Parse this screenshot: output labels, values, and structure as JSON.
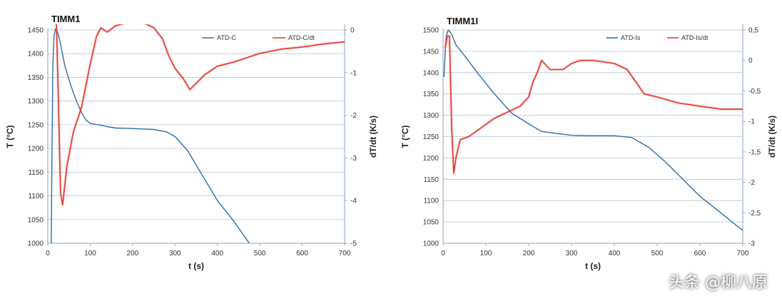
{
  "colors": {
    "temperature": "#2d6ea3",
    "derivative": "#e03a32",
    "grid": "#b8c4d6",
    "axis": "#8aa0bf"
  },
  "watermark": "头条 @柳八原",
  "chart_data": [
    {
      "type": "line",
      "title": "TIMM1",
      "xlabel": "t (s)",
      "ylabel": "T (°C)",
      "y2label": "dT/dt (K/s)",
      "xlim": [
        0,
        700
      ],
      "ylim": [
        1000,
        1450
      ],
      "y2lim": [
        -5,
        0
      ],
      "x_ticks": [
        "0",
        "100",
        "200",
        "300",
        "400",
        "500",
        "600",
        "700"
      ],
      "y_ticks": [
        "1000",
        "1050",
        "1100",
        "1150",
        "1200",
        "1250",
        "1300",
        "1350",
        "1400",
        "1450"
      ],
      "y2_ticks": [
        "-5",
        "-4",
        "-3",
        "-2",
        "-1",
        "0"
      ],
      "legend_position": "top-right",
      "grid": true,
      "series": [
        {
          "name": "ATD-C",
          "axis": "left",
          "color": "#2d6ea3",
          "x": [
            8,
            10,
            12,
            15,
            18,
            21,
            25,
            30,
            40,
            50,
            60,
            70,
            80,
            90,
            100,
            110,
            120,
            140,
            160,
            200,
            250,
            280,
            300,
            330,
            360,
            400,
            440,
            475
          ],
          "y": [
            1000,
            1200,
            1380,
            1440,
            1452,
            1450,
            1440,
            1420,
            1375,
            1345,
            1318,
            1295,
            1275,
            1260,
            1253,
            1251,
            1250,
            1246,
            1243,
            1242,
            1240,
            1235,
            1225,
            1195,
            1150,
            1090,
            1045,
            1000
          ]
        },
        {
          "name": "ATD-C/dt",
          "axis": "right",
          "color": "#e03a32",
          "x": [
            10,
            15,
            20,
            25,
            30,
            35,
            45,
            60,
            80,
            100,
            115,
            125,
            140,
            160,
            180,
            200,
            230,
            250,
            270,
            285,
            300,
            320,
            335,
            350,
            370,
            400,
            440,
            500,
            550,
            600,
            650,
            700
          ],
          "y": [
            0.15,
            0.45,
            0.3,
            -1.7,
            -3.8,
            -4.1,
            -3.2,
            -2.4,
            -1.8,
            -0.8,
            -0.15,
            0.05,
            -0.05,
            0.1,
            0.15,
            0.2,
            0.15,
            0.05,
            -0.2,
            -0.6,
            -0.9,
            -1.15,
            -1.4,
            -1.25,
            -1.05,
            -0.85,
            -0.75,
            -0.55,
            -0.45,
            -0.4,
            -0.33,
            -0.28
          ]
        }
      ]
    },
    {
      "type": "line",
      "title": "TIMM1I",
      "xlabel": "t (s)",
      "ylabel": "T (°C)",
      "y2label": "dT/dt (K/s)",
      "xlim": [
        0,
        700
      ],
      "ylim": [
        1000,
        1500
      ],
      "y2lim": [
        -3,
        0.5
      ],
      "x_ticks": [
        "0",
        "100",
        "200",
        "300",
        "400",
        "500",
        "600",
        "700"
      ],
      "y_ticks": [
        "1000",
        "1050",
        "1100",
        "1150",
        "1200",
        "1250",
        "1300",
        "1350",
        "1400",
        "1450",
        "1500"
      ],
      "y2_ticks": [
        "-3",
        "-2,5",
        "-2",
        "-1,5",
        "-1",
        "-0,5",
        "0",
        "0,5"
      ],
      "legend_position": "top-right",
      "grid": true,
      "series": [
        {
          "name": "ATD-Is",
          "axis": "left",
          "color": "#2d6ea3",
          "x": [
            2,
            5,
            8,
            12,
            15,
            20,
            30,
            50,
            80,
            120,
            160,
            200,
            230,
            260,
            300,
            350,
            400,
            440,
            480,
            520,
            560,
            600,
            650,
            700
          ],
          "y": [
            1390,
            1450,
            1488,
            1500,
            1497,
            1490,
            1465,
            1440,
            1400,
            1350,
            1305,
            1280,
            1262,
            1258,
            1253,
            1252,
            1252,
            1248,
            1225,
            1190,
            1150,
            1110,
            1070,
            1030
          ],
          "y_note": "values from 650 s onward are read against the printed 1050 tick"
        },
        {
          "name": "ATD-Is/dt",
          "axis": "right",
          "color": "#e03a32",
          "x": [
            5,
            10,
            15,
            20,
            25,
            30,
            40,
            60,
            80,
            100,
            120,
            150,
            180,
            200,
            210,
            220,
            230,
            250,
            280,
            300,
            320,
            350,
            400,
            430,
            450,
            470,
            500,
            550,
            600,
            650,
            700
          ],
          "y": [
            0.2,
            0.4,
            0.4,
            -1.1,
            -1.85,
            -1.6,
            -1.3,
            -1.25,
            -1.15,
            -1.05,
            -0.95,
            -0.85,
            -0.75,
            -0.6,
            -0.35,
            -0.2,
            0.0,
            -0.15,
            -0.15,
            -0.05,
            0.0,
            0.0,
            -0.05,
            -0.15,
            -0.35,
            -0.55,
            -0.6,
            -0.7,
            -0.75,
            -0.8,
            -0.8
          ]
        }
      ]
    }
  ]
}
